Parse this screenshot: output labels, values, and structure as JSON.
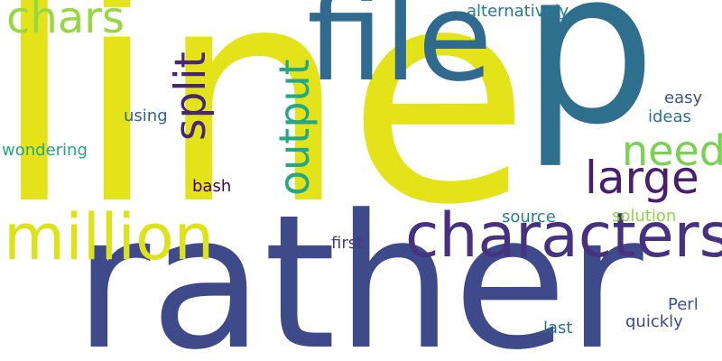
{
  "background": "#ffffff",
  "words": [
    {
      "text": "line",
      "color": "#e4e31a"
    },
    {
      "text": "rather",
      "color": "#3e4a89"
    },
    {
      "text": "p",
      "color": "#2e6f8e"
    },
    {
      "text": "file",
      "color": "#306a8e"
    },
    {
      "text": "characters",
      "color": "#46327e"
    },
    {
      "text": "million",
      "color": "#dde318"
    },
    {
      "text": "chars",
      "color": "#95d840"
    },
    {
      "text": "output",
      "color": "#22a884"
    },
    {
      "text": "split",
      "color": "#482677"
    },
    {
      "text": "need",
      "color": "#7ad151"
    },
    {
      "text": "large",
      "color": "#481f70"
    },
    {
      "text": "alternatively",
      "color": "#2a788e"
    },
    {
      "text": "easy",
      "color": "#3b528b"
    },
    {
      "text": "ideas",
      "color": "#2c728e"
    },
    {
      "text": "using",
      "color": "#33638d"
    },
    {
      "text": "wondering",
      "color": "#21a685"
    },
    {
      "text": "bash",
      "color": "#440154"
    },
    {
      "text": "source",
      "color": "#26828e"
    },
    {
      "text": "solution",
      "color": "#8bd646"
    },
    {
      "text": "first",
      "color": "#433e85"
    },
    {
      "text": "Perl",
      "color": "#3b528b"
    },
    {
      "text": "quickly",
      "color": "#3e4989"
    },
    {
      "text": "last",
      "color": "#2d718e"
    }
  ]
}
